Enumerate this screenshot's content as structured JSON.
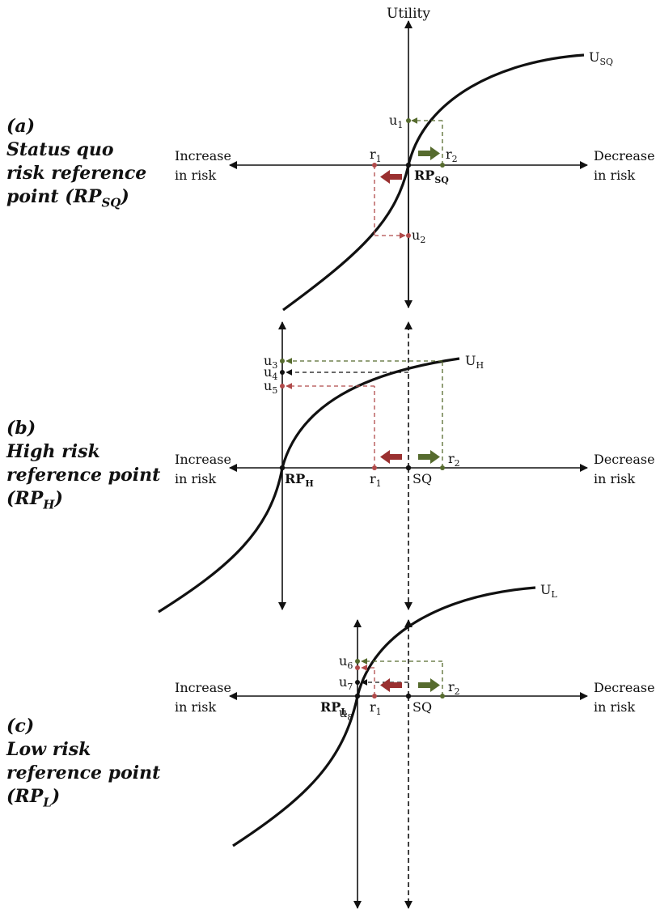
{
  "colors": {
    "ink": "#111111",
    "green": "#566b2e",
    "red": "#9a3030"
  },
  "top_axis_label": "Utility",
  "panels": [
    {
      "letter": "(a)",
      "title_lines": [
        "Status quo",
        "risk reference"
      ],
      "title_line3_main": "point (RP",
      "title_line3_sub": "SQ",
      "title_line3_end": ")",
      "left_axis_label": [
        "Increase",
        "in risk"
      ],
      "right_axis_label": [
        "Decrease",
        "in risk"
      ],
      "curve": {
        "main": "U",
        "sub": "SQ"
      },
      "ref_point": {
        "main": "RP",
        "sub": "SQ"
      },
      "r1": {
        "main": "r",
        "sub": "1"
      },
      "r2": {
        "main": "r",
        "sub": "2"
      },
      "u_top": {
        "main": "u",
        "sub": "1"
      },
      "u_bottom": {
        "main": "u",
        "sub": "2"
      }
    },
    {
      "letter": "(b)",
      "title_lines": [
        "High risk",
        "reference point"
      ],
      "title_line3_main": "(RP",
      "title_line3_sub": "H",
      "title_line3_end": ")",
      "left_axis_label": [
        "Increase",
        "in risk"
      ],
      "right_axis_label": [
        "Decrease",
        "in risk"
      ],
      "curve": {
        "main": "U",
        "sub": "H"
      },
      "ref_point": {
        "main": "RP",
        "sub": "H"
      },
      "sq_label": "SQ",
      "r1": {
        "main": "r",
        "sub": "1"
      },
      "r2": {
        "main": "r",
        "sub": "2"
      },
      "u_green": {
        "main": "u",
        "sub": "3"
      },
      "u_black": {
        "main": "u",
        "sub": "4"
      },
      "u_red": {
        "main": "u",
        "sub": "5"
      }
    },
    {
      "letter": "(c)",
      "title_lines": [
        "Low risk",
        "reference point"
      ],
      "title_line3_main": "(RP",
      "title_line3_sub": "L",
      "title_line3_end": ")",
      "left_axis_label": [
        "Increase",
        "in risk"
      ],
      "right_axis_label": [
        "Decrease",
        "in risk"
      ],
      "curve": {
        "main": "U",
        "sub": "L"
      },
      "ref_point": {
        "main": "RP",
        "sub": "L"
      },
      "sq_label": "SQ",
      "r1": {
        "main": "r",
        "sub": "1"
      },
      "r2": {
        "main": "r",
        "sub": "2"
      },
      "u_green": {
        "main": "u",
        "sub": "6"
      },
      "u_black": {
        "main": "u",
        "sub": "7"
      },
      "u_red": {
        "main": "u",
        "sub": "8"
      }
    }
  ]
}
